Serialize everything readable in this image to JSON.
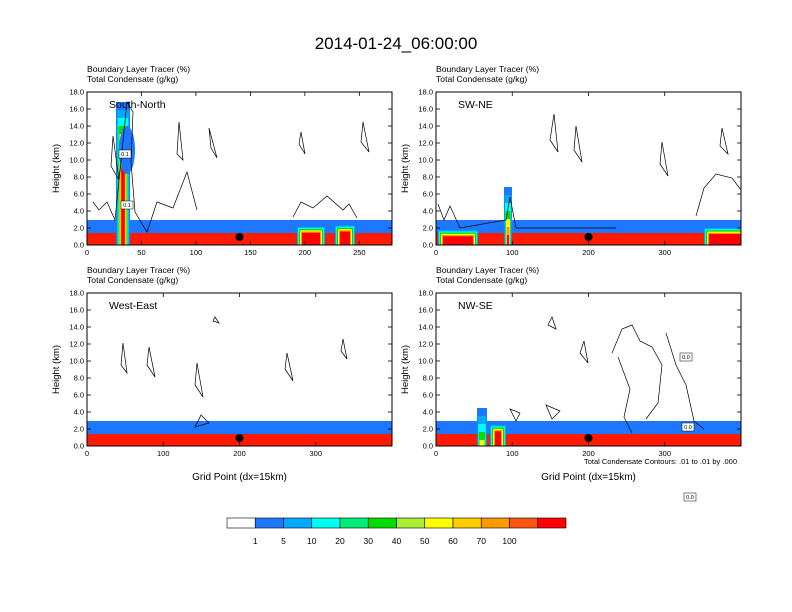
{
  "figure": {
    "title": "2014-01-24_06:00:00",
    "footnote": "Total Condensate Contours: .01 to .01 by .000"
  },
  "panels": [
    {
      "label": "South-North",
      "line1": "Boundary Layer Tracer   (%)",
      "line2": "Total Condensate   (g/kg)",
      "ylabel": "Height (km)",
      "xlabel": "",
      "x_ticks": [
        "0",
        "50",
        "100",
        "150",
        "200",
        "250"
      ],
      "x_max": 280,
      "y_ticks": [
        "0.0",
        "2.0",
        "4.0",
        "6.0",
        "8.0",
        "10.0",
        "12.0",
        "14.0",
        "16.0",
        "18.0"
      ],
      "marker_x": 140,
      "contour_labels": [
        "0.1",
        "0.1"
      ]
    },
    {
      "label": "SW-NE",
      "line1": "Boundary Layer Tracer   (%)",
      "line2": "Total Condensate   (g/kg)",
      "ylabel": "Height (km)",
      "xlabel": "",
      "x_ticks": [
        "0",
        "100",
        "200",
        "300"
      ],
      "x_max": 400,
      "y_ticks": [
        "0.0",
        "2.0",
        "4.0",
        "6.0",
        "8.0",
        "10.0",
        "12.0",
        "14.0",
        "16.0",
        "18.0"
      ],
      "marker_x": 200,
      "contour_labels": []
    },
    {
      "label": "West-East",
      "line1": "Boundary Layer Tracer   (%)",
      "line2": "Total Condensate   (g/kg)",
      "ylabel": "Height (km)",
      "xlabel": "Grid Point (dx=15km)",
      "x_ticks": [
        "0",
        "100",
        "200",
        "300"
      ],
      "x_max": 400,
      "y_ticks": [
        "0.0",
        "2.0",
        "4.0",
        "6.0",
        "8.0",
        "10.0",
        "12.0",
        "14.0",
        "16.0",
        "18.0"
      ],
      "marker_x": 200,
      "contour_labels": []
    },
    {
      "label": "NW-SE",
      "line1": "Boundary Layer Tracer   (%)",
      "line2": "Total Condensate   (g/kg)",
      "ylabel": "Height (km)",
      "xlabel": "Grid Point (dx=15km)",
      "x_ticks": [
        "0",
        "100",
        "200",
        "300"
      ],
      "x_max": 400,
      "y_ticks": [
        "0.0",
        "2.0",
        "4.0",
        "6.0",
        "8.0",
        "10.0",
        "12.0",
        "14.0",
        "16.0",
        "18.0"
      ],
      "marker_x": 200,
      "contour_labels": [
        "0.0",
        "0.0",
        "0.0"
      ]
    }
  ],
  "colorbar": {
    "labels": [
      "1",
      "5",
      "10",
      "20",
      "30",
      "40",
      "50",
      "60",
      "70",
      "100"
    ],
    "colors": [
      "#ffffff",
      "#1e78ff",
      "#00aaff",
      "#00ffee",
      "#00ee77",
      "#00dd00",
      "#aaee33",
      "#ffff00",
      "#ffcc00",
      "#ff9900",
      "#ff5511",
      "#ff0000"
    ]
  },
  "chart_data": {
    "type": "heatmap",
    "title": "2014-01-24_06:00:00",
    "variables": [
      "Boundary Layer Tracer (%) shaded",
      "Total Condensate (g/kg) contoured"
    ],
    "ylabel": "Height (km)",
    "xlabel": "Grid Point (dx=15km)",
    "ylim": [
      0,
      18
    ],
    "levels": [
      1,
      5,
      10,
      20,
      30,
      40,
      50,
      60,
      70,
      100
    ],
    "contour_interval": ".01 to .01 by .000",
    "panels": [
      "South-North",
      "SW-NE",
      "West-East",
      "NW-SE"
    ]
  }
}
